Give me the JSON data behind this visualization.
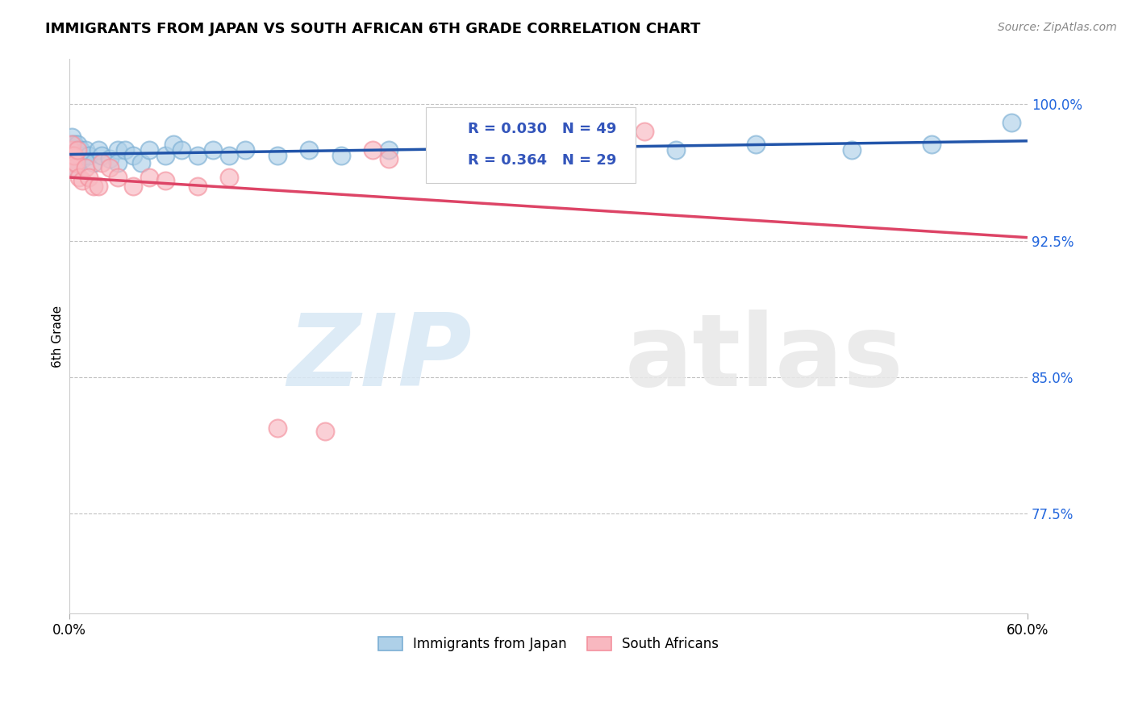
{
  "title": "IMMIGRANTS FROM JAPAN VS SOUTH AFRICAN 6TH GRADE CORRELATION CHART",
  "source": "Source: ZipAtlas.com",
  "ylabel": "6th Grade",
  "xlim": [
    0.0,
    0.6
  ],
  "ylim": [
    0.72,
    1.025
  ],
  "yticks": [
    0.775,
    0.85,
    0.925,
    1.0
  ],
  "ytick_labels": [
    "77.5%",
    "85.0%",
    "92.5%",
    "100.0%"
  ],
  "xticks": [
    0.0,
    0.6
  ],
  "xtick_labels": [
    "0.0%",
    "60.0%"
  ],
  "japan_color": "#7BAFD4",
  "japan_color_fill": "#AED0E8",
  "sa_color": "#F4919E",
  "sa_color_fill": "#F8B8C0",
  "R_japan": 0.03,
  "N_japan": 49,
  "R_sa": 0.364,
  "N_sa": 29,
  "legend_R_color": "#3355BB",
  "circle_size": 250,
  "japan_x": [
    0.0008,
    0.001,
    0.0012,
    0.0015,
    0.0018,
    0.002,
    0.0022,
    0.0025,
    0.003,
    0.003,
    0.004,
    0.004,
    0.005,
    0.005,
    0.006,
    0.007,
    0.008,
    0.009,
    0.01,
    0.012,
    0.015,
    0.018,
    0.02,
    0.025,
    0.03,
    0.03,
    0.035,
    0.04,
    0.045,
    0.05,
    0.06,
    0.065,
    0.07,
    0.08,
    0.09,
    0.1,
    0.11,
    0.13,
    0.15,
    0.17,
    0.2,
    0.24,
    0.28,
    0.32,
    0.38,
    0.43,
    0.49,
    0.54,
    0.59
  ],
  "japan_y": [
    0.978,
    0.975,
    0.972,
    0.982,
    0.97,
    0.975,
    0.968,
    0.975,
    0.978,
    0.97,
    0.975,
    0.965,
    0.978,
    0.968,
    0.972,
    0.975,
    0.97,
    0.972,
    0.975,
    0.972,
    0.968,
    0.975,
    0.972,
    0.97,
    0.975,
    0.968,
    0.975,
    0.972,
    0.968,
    0.975,
    0.972,
    0.978,
    0.975,
    0.972,
    0.975,
    0.972,
    0.975,
    0.972,
    0.975,
    0.972,
    0.975,
    0.972,
    0.975,
    0.972,
    0.975,
    0.978,
    0.975,
    0.978,
    0.99
  ],
  "sa_x": [
    0.0008,
    0.001,
    0.0012,
    0.0015,
    0.002,
    0.0022,
    0.003,
    0.004,
    0.005,
    0.006,
    0.008,
    0.01,
    0.012,
    0.015,
    0.018,
    0.02,
    0.025,
    0.03,
    0.04,
    0.05,
    0.06,
    0.08,
    0.1,
    0.13,
    0.16,
    0.19,
    0.2,
    0.29,
    0.36
  ],
  "sa_y": [
    0.975,
    0.972,
    0.968,
    0.978,
    0.972,
    0.965,
    0.972,
    0.968,
    0.975,
    0.96,
    0.958,
    0.965,
    0.96,
    0.955,
    0.955,
    0.968,
    0.965,
    0.96,
    0.955,
    0.96,
    0.958,
    0.955,
    0.96,
    0.822,
    0.82,
    0.975,
    0.97,
    0.983,
    0.985
  ]
}
